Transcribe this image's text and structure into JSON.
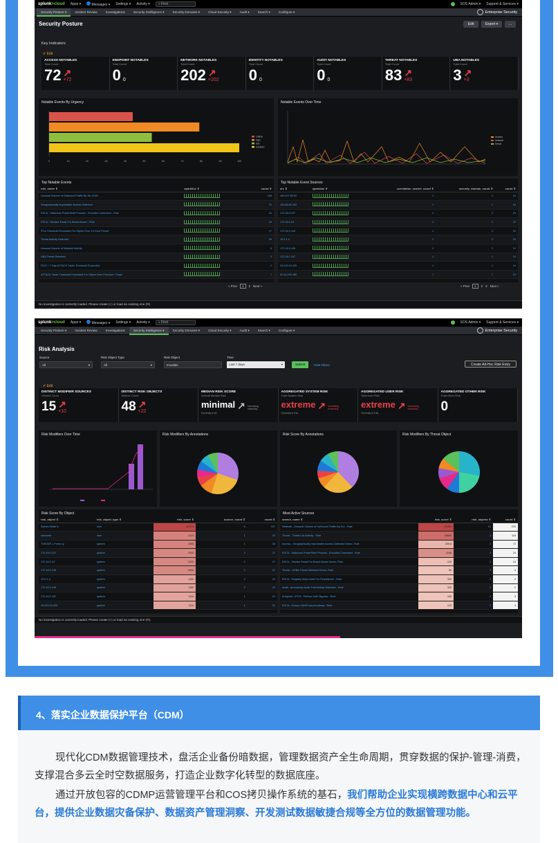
{
  "topbar": {
    "logo_a": "splunk",
    "logo_b": ">cloud",
    "apps": "Apps ▾",
    "messages": "Messages ▾",
    "settings": "Settings ▾",
    "activity": "Activity ▾",
    "find": "Find",
    "user": "SOS Admin ▾",
    "support": "Support & Services ▾"
  },
  "nav": {
    "items": [
      "Security Posture ▾",
      "Incident Review",
      "Investigations",
      "Security Intelligence ▾",
      "Security Domains ▾",
      "Cloud Security ▾",
      "Audit ▾",
      "Search ▾",
      "Configure ▾"
    ],
    "app_name": "Enterprise Security"
  },
  "posture": {
    "title": "Security Posture",
    "edit_btn": "Edit",
    "export_btn": "Export ▾",
    "more_btn": "...",
    "key_indicators": "Key Indicators",
    "edit_link": "✐ Edit",
    "kpis": [
      {
        "title": "ACCESS NOTABLES",
        "sub": "Total Count",
        "value": "72",
        "delta": "+72"
      },
      {
        "title": "ENDPOINT NOTABLES",
        "sub": "Total Count",
        "value": "0",
        "delta": "0"
      },
      {
        "title": "NETWORK NOTABLES",
        "sub": "Total Count",
        "value": "202",
        "delta": "+202"
      },
      {
        "title": "IDENTITY NOTABLES",
        "sub": "Total Count",
        "value": "0",
        "delta": "0"
      },
      {
        "title": "AUDIT NOTABLES",
        "sub": "Total Count",
        "value": "0",
        "delta": "0"
      },
      {
        "title": "THREAT NOTABLES",
        "sub": "Total Count",
        "value": "83",
        "delta": "+83"
      },
      {
        "title": "UBA NOTABLES",
        "sub": "Total Count",
        "value": "3",
        "delta": "+3"
      }
    ],
    "urgency_title": "Notable Events By Urgency",
    "over_time_title": "Notable Events Over Time",
    "top_events_title": "Top Notable Events",
    "top_events_cols": [
      "rule_name ⇕",
      "sparkline ⇕",
      "count ⇕"
    ],
    "top_events": [
      {
        "name": "Unusual Volume of Outbound Traffic By Src 2018",
        "count": "108"
      },
      {
        "name": "Geographically Improbable Access Detected",
        "count": "72"
      },
      {
        "name": "ESCU - Malicious PowerShell Process - Encoded Command - Rule",
        "count": "24"
      },
      {
        "name": "ESCU - Monitor Email For Brand Abuse - Rule",
        "count": "24"
      },
      {
        "name": "PCA Threshold Exceeded For Object Over 24 Hour Period",
        "count": "17"
      },
      {
        "name": "Threat Activity Detected",
        "count": "16"
      },
      {
        "name": "Unusual Volume of Network Activity",
        "count": "6"
      },
      {
        "name": "UBA Threat Detected",
        "count": "3"
      },
      {
        "name": "ROO + 7 Day ATT&CK Tactic Threshold Exceeded",
        "count": "2"
      },
      {
        "name": "ATT&CK Tactic Threshold Exceeded For Object Over Previous 7 Days",
        "count": "1"
      }
    ],
    "sources_title": "Top Notable Event Sources",
    "sources_cols": [
      "src ⇕",
      "sparkline ⇕",
      "correlation_search_count ⇕",
      "security_domain_count ⇕",
      "count ⇕"
    ],
    "sources": [
      {
        "src": "164.207.83.52",
        "c": "1",
        "d": "1",
        "n": "24"
      },
      {
        "src": "103.86.81.202",
        "c": "1",
        "d": "1",
        "n": "24"
      },
      {
        "src": "172.16.0.127",
        "c": "2",
        "d": "2",
        "n": "24"
      },
      {
        "src": "172.16.0.13",
        "c": "2",
        "d": "2",
        "n": "22"
      },
      {
        "src": "172.16.0.149",
        "c": "2",
        "d": "2",
        "n": "20"
      },
      {
        "src": "10.0.1.4",
        "c": "2",
        "d": "2",
        "n": "15"
      },
      {
        "src": "172.16.0.145",
        "c": "2",
        "d": "2",
        "n": "14"
      },
      {
        "src": "172.16.1.167",
        "c": "1",
        "d": "1",
        "n": "10"
      },
      {
        "src": "34.215.24.225",
        "c": "1",
        "d": "1",
        "n": "10"
      },
      {
        "src": "52.34.215.180",
        "c": "1",
        "d": "1",
        "n": "10"
      }
    ],
    "pager": {
      "prev": "« Prev",
      "p1": "1",
      "p2": "2",
      "p3": "3",
      "next": "Next »"
    },
    "status": "No investigation is currently loaded. Please create (+) or load an existing one (⟳)."
  },
  "risk": {
    "title": "Risk Analysis",
    "source_label": "Source",
    "source_val": "All",
    "type_label": "Risk Object Type",
    "type_val": "All",
    "object_label": "Risk Object",
    "object_val": "Imvalidu",
    "time_label": "Time",
    "time_val": "Last 7 days",
    "submit": "Submit",
    "hide": "Hide Filters",
    "create_btn": "Create Ad-Hoc Risk Entry",
    "edit_link": "✐ Edit",
    "kpis": [
      {
        "title": "DISTINCT MODIFIER SOURCES",
        "sub": "Distinct Count",
        "value": "15",
        "delta": "+10"
      },
      {
        "title": "DISTINCT RISK OBJECTS",
        "sub": "Distinct Count",
        "value": "48",
        "delta": "+22"
      },
      {
        "title": "MEDIAN RISK SCORE",
        "sub": "Overall Median Risk",
        "value": "minimal",
        "trend": "increasing",
        "trend2": "minimally",
        "foot": "Currently is 60"
      },
      {
        "title": "AGGREGATED SYSTEM RISK",
        "sub": "Total System Risk",
        "value": "extreme",
        "trend": "increasing",
        "trend2": "extremely",
        "foot": "Currently is 21k"
      },
      {
        "title": "AGGREGATED USER RISK",
        "sub": "Total User Risk",
        "value": "extreme",
        "trend": "increasing",
        "trend2": "extremely",
        "foot": "Currently is 9.6k"
      },
      {
        "title": "AGGREGATED OTHER RISK",
        "sub": "Total Other Risk",
        "value": "0"
      }
    ],
    "p1": "Risk Modifiers Over Time",
    "p2": "Risk Modifiers By Annotations",
    "p3": "Risk Score By Annotations",
    "p4": "Risk Modifiers By Threat Object",
    "obj_title": "Risk Score By Object",
    "obj_cols": [
      "risk_object ⇕",
      "risk_object_type ⇕",
      "risk_score ⇕",
      "source_count ⇕",
      "count ⇕"
    ],
    "objects": [
      {
        "o": "Syedo-Sfrath Ic",
        "t": "user",
        "s": "4320.8",
        "sc": "6",
        "c": "157",
        "heat": 1.0
      },
      {
        "o": "unknown",
        "t": "user",
        "s": "2120",
        "sc": "1",
        "c": "42",
        "heat": 0.55
      },
      {
        "o": "TVEXDF-L Fresh Ly",
        "t": "system",
        "s": "2080",
        "sc": "1",
        "c": "35",
        "heat": 0.53
      },
      {
        "o": "172.16.0.127",
        "t": "system",
        "s": "2000",
        "sc": "3",
        "c": "37",
        "heat": 0.5
      },
      {
        "o": "172.16.0.13",
        "t": "system",
        "s": "2000",
        "sc": "2",
        "c": "37",
        "heat": 0.5
      },
      {
        "o": "172.16.0.149",
        "t": "system",
        "s": "2000",
        "sc": "2",
        "c": "37",
        "heat": 0.5
      },
      {
        "o": "10.0.1.4",
        "t": "system",
        "s": "1180",
        "sc": "2",
        "c": "23",
        "heat": 0.3
      },
      {
        "o": "172.16.0.145",
        "t": "system",
        "s": "1180",
        "sc": "2",
        "c": "23",
        "heat": 0.3
      },
      {
        "o": "172.16.1.167",
        "t": "system",
        "s": "1120",
        "sc": "1",
        "c": "21",
        "heat": 0.28
      },
      {
        "o": "34.215.24.225",
        "t": "system",
        "s": "1120",
        "sc": "1",
        "c": "21",
        "heat": 0.28
      }
    ],
    "src_title": "Most Active Sources",
    "src_cols": [
      "search_name ⇕",
      "risk_score ⇕",
      "risk_objects ⇕",
      "count ⇕"
    ],
    "sources": [
      {
        "n": "Network - Unusual Volume of Outbound Traffic By Src - Rule",
        "s": "21600",
        "o": "21",
        "c": "225",
        "heat": 1.0
      },
      {
        "n": "Threat - Threat List Activity - Rule",
        "s": "28606",
        "o": "3",
        "c": "118",
        "heat": 0.7
      },
      {
        "n": "Access - Geographically Improbable Access Detected Demo- Rule",
        "s": "259.8",
        "o": "2",
        "c": "72",
        "heat": 0.15
      },
      {
        "n": "ESCU - Malicious PowerShell Process - Encoded Command - Rule",
        "s": "4168",
        "o": "3",
        "c": "24",
        "heat": 0.45
      },
      {
        "n": "ESCU - Monitor Email For Brand Abuse Demo- Rule",
        "s": "120",
        "o": "2",
        "c": "24",
        "heat": 0.08
      },
      {
        "n": "Threat - UEBA Threat Detected Demo- Rule",
        "s": "50",
        "o": "3",
        "c": "3",
        "heat": 0.04
      },
      {
        "n": "ESCU - Registry Keys Used For Persistence - Rule",
        "s": "320",
        "o": "2",
        "c": "3",
        "heat": 0.05
      },
      {
        "n": "Audit - Anomalous Audit Trail Activity Detected - Rule",
        "s": "320",
        "o": "2",
        "c": "2",
        "heat": 0.05
      },
      {
        "n": "Endpoint - IPCH - PsExec UAC Bypass - Rule",
        "s": "160",
        "o": "2",
        "c": "3",
        "heat": 0.04
      },
      {
        "n": "ESCU - Dump LSASS via procdump - Rule",
        "s": "120",
        "o": "2",
        "c": "3",
        "heat": 0.03
      }
    ],
    "status": "No investigation is currently loaded. Please create (+) or load an existing one (⟳)."
  },
  "urgency_chart": {
    "type": "bar",
    "categories": [
      "critical",
      "high",
      "low",
      "medium"
    ],
    "values": [
      44,
      79,
      54,
      100
    ],
    "xlim": [
      0,
      100
    ],
    "colors": [
      "#d9534a",
      "#f08a24",
      "#8fbf3f",
      "#f0c419"
    ]
  },
  "section": {
    "title": "4、落实企业数据保护平台（CDM）",
    "p1": "现代化CDM数据管理技术，盘活企业备份暗数据，管理数据资产全生命周期，贯穿数据的保护-管理-消费，支撑混合多云全时空数据服务，打造企业数字化转型的数据底座。",
    "p2a": "通过开放包容的CDMP运营管理平台和COS拷贝操作系统的基石，",
    "p2b": "我们帮助企业实现横跨数据中心和云平台，提供企业数据灾备保护、数据资产管理洞察、开发测试数据敏捷合规等全方位的数据管理功能。"
  }
}
